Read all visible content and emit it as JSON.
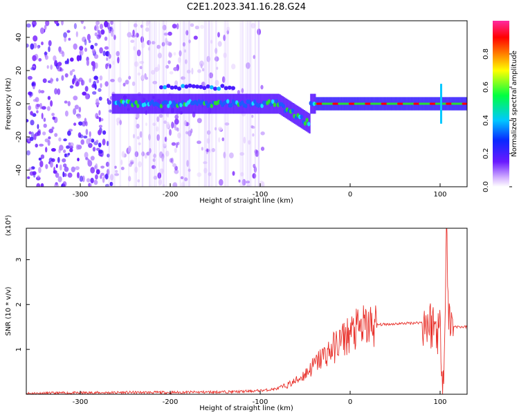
{
  "title": "C2E1.2023.341.16.28.G24",
  "colors": {
    "snr_line": "#e8302a",
    "ridge_high": "#ff0000",
    "ridge_mid": "#2bdc34",
    "ridge_low": "#1e5bff",
    "scatter": "#7a3df0"
  },
  "chart_data": [
    {
      "type": "heatmap",
      "xlabel": "Height of straight line (km)",
      "ylabel": "Frequency (Hz)",
      "xlim": [
        -360,
        130
      ],
      "ylim": [
        -50,
        50
      ],
      "xticks": [
        -300,
        -200,
        -100,
        0,
        100
      ],
      "yticks": [
        -40,
        -20,
        0,
        20,
        40
      ],
      "colorbar": {
        "label": "Normalized spectral amplitude",
        "range": [
          0,
          1
        ],
        "ticks": [
          "0.0",
          "0.2",
          "0.4",
          "0.6",
          "0.8"
        ],
        "colormap": "rainbow (white-violet-blue-cyan-green-yellow-red-magenta)"
      },
      "grid": false
    },
    {
      "type": "line",
      "xlabel": "Height of straight line (km)",
      "ylabel": "SNR (10 * v/v)",
      "scale_label": "(x10⁴)",
      "xlim": [
        -360,
        130
      ],
      "ylim": [
        0,
        3.7
      ],
      "xticks": [
        -300,
        -200,
        -100,
        0,
        100
      ],
      "yticks": [
        1,
        2,
        3
      ],
      "grid": false,
      "series": [
        {
          "color": "#e8302a",
          "x": [
            -360,
            -300,
            -250,
            -200,
            -150,
            -120,
            -100,
            -90,
            -80,
            -70,
            -60,
            -50,
            -40,
            -30,
            -20,
            -10,
            0,
            10,
            20,
            30,
            40,
            60,
            80,
            90,
            95,
            100,
            103,
            105,
            107,
            110,
            115,
            120,
            130
          ],
          "y": [
            0.02,
            0.03,
            0.04,
            0.04,
            0.05,
            0.06,
            0.08,
            0.1,
            0.13,
            0.2,
            0.3,
            0.45,
            0.65,
            0.85,
            1.0,
            1.2,
            1.35,
            1.45,
            1.52,
            1.55,
            1.56,
            1.58,
            1.6,
            1.57,
            1.5,
            1.4,
            0.5,
            1.0,
            3.7,
            1.6,
            1.52,
            1.5,
            1.5
          ]
        }
      ]
    }
  ]
}
